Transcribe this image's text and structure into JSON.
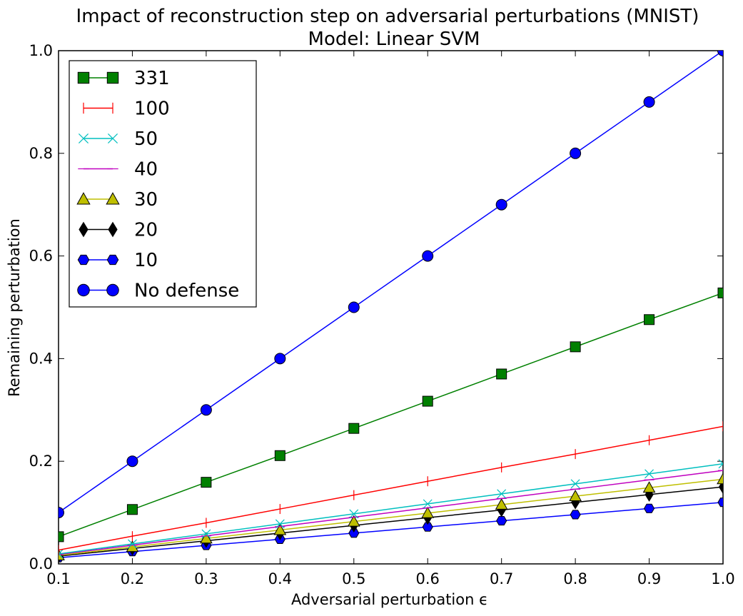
{
  "chart_data": {
    "type": "line",
    "title": "Impact of reconstruction step on adversarial perturbations (MNIST)",
    "subtitle": "Model: Linear SVM",
    "xlabel": "Adversarial perturbation ϵ",
    "ylabel": "Remaining perturbation",
    "xlim": [
      0.1,
      1.0
    ],
    "ylim": [
      0.0,
      1.0
    ],
    "xticks": [
      "0.1",
      "0.2",
      "0.3",
      "0.4",
      "0.5",
      "0.6",
      "0.7",
      "0.8",
      "0.9",
      "1.0"
    ],
    "yticks": [
      "0.0",
      "0.2",
      "0.4",
      "0.6",
      "0.8",
      "1.0"
    ],
    "grid": false,
    "legend_position": "upper-left",
    "x": [
      0.1,
      0.2,
      0.3,
      0.4,
      0.5,
      0.6,
      0.7,
      0.8,
      0.9,
      1.0
    ],
    "series": [
      {
        "name": "331",
        "color": "#008000",
        "marker": "square",
        "values": [
          0.053,
          0.106,
          0.159,
          0.211,
          0.264,
          0.317,
          0.37,
          0.423,
          0.476,
          0.528
        ]
      },
      {
        "name": "100",
        "color": "#ff0000",
        "marker": "vline",
        "values": [
          0.027,
          0.054,
          0.08,
          0.107,
          0.134,
          0.161,
          0.188,
          0.214,
          0.241,
          0.268
        ]
      },
      {
        "name": "50",
        "color": "#00bfbf",
        "marker": "x",
        "values": [
          0.0195,
          0.039,
          0.0585,
          0.078,
          0.0975,
          0.117,
          0.1365,
          0.156,
          0.1755,
          0.195
        ]
      },
      {
        "name": "40",
        "color": "#bf00bf",
        "marker": "hline",
        "values": [
          0.0182,
          0.0364,
          0.0546,
          0.0728,
          0.091,
          0.1092,
          0.1274,
          0.1456,
          0.1638,
          0.182
        ]
      },
      {
        "name": "30",
        "color": "#bfbf00",
        "marker": "triangle",
        "values": [
          0.0165,
          0.033,
          0.0495,
          0.066,
          0.0825,
          0.099,
          0.1155,
          0.132,
          0.1485,
          0.165
        ]
      },
      {
        "name": "20",
        "color": "#000000",
        "marker": "diamond",
        "values": [
          0.015,
          0.03,
          0.045,
          0.06,
          0.075,
          0.09,
          0.105,
          0.12,
          0.135,
          0.15
        ]
      },
      {
        "name": "10",
        "color": "#0000ff",
        "marker": "hexagon",
        "values": [
          0.012,
          0.024,
          0.036,
          0.048,
          0.06,
          0.072,
          0.084,
          0.096,
          0.108,
          0.12
        ]
      },
      {
        "name": "No defense",
        "color": "#0000ff",
        "marker": "circle",
        "values": [
          0.1,
          0.2,
          0.3,
          0.4,
          0.5,
          0.6,
          0.7,
          0.8,
          0.9,
          1.0
        ]
      }
    ]
  }
}
